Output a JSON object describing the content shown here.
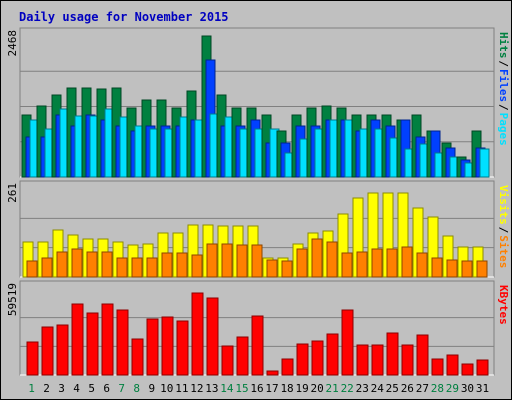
{
  "chart_data": {
    "type": "bar",
    "title": "Daily usage for November 2015",
    "days": [
      "1",
      "2",
      "3",
      "4",
      "5",
      "6",
      "7",
      "8",
      "9",
      "10",
      "11",
      "12",
      "13",
      "14",
      "15",
      "16",
      "17",
      "18",
      "19",
      "20",
      "21",
      "22",
      "23",
      "24",
      "25",
      "26",
      "27",
      "28",
      "29",
      "30",
      "31"
    ],
    "weekend_days": [
      "1",
      "7",
      "8",
      "14",
      "15",
      "21",
      "22",
      "28",
      "29"
    ],
    "panels": {
      "hits_files_pages": {
        "max_label": "2468",
        "ymax": 2468,
        "series": [
          {
            "name": "Hits",
            "color": "#008040",
            "values": [
              1093,
              1251,
              1444,
              1561,
              1561,
              1542,
              1561,
              1200,
              1347,
              1347,
              1200,
              1503,
              2468,
              1444,
              1205,
              1205,
              1093,
              813,
              1093,
              1205,
              1251,
              1205,
              1093,
              1093,
              1093,
              1000,
              1093,
              813,
              600,
              350,
              813
            ]
          },
          {
            "name": "Files",
            "color": "#0040ff",
            "values": [
              700,
              700,
              1093,
              900,
              1093,
              1000,
              900,
              813,
              900,
              900,
              900,
              1000,
              2050,
              900,
              900,
              1000,
              600,
              600,
              900,
              900,
              1000,
              1000,
              813,
              1000,
              900,
              1000,
              700,
              813,
              500,
              300,
              500
            ]
          },
          {
            "name": "Pages",
            "color": "#00e0ff",
            "values": [
              996,
              836,
              1188,
              1069,
              1069,
              1188,
              1045,
              892,
              836,
              836,
              1045,
              1000,
              1094,
              1045,
              836,
              836,
              836,
              420,
              658,
              836,
              994,
              994,
              836,
              836,
              686,
              490,
              574,
              420,
              346,
              248,
              490
            ]
          }
        ]
      },
      "visits_sites": {
        "max_label": "261",
        "ymax": 261,
        "series": [
          {
            "name": "Visits",
            "color": "#ffff00",
            "values": [
              103,
              103,
              140,
              126,
              112,
              112,
              103,
              94,
              98,
              131,
              131,
              155,
              155,
              150,
              150,
              150,
              56,
              56,
              98,
              131,
              136,
              187,
              234,
              248,
              248,
              248,
              206,
              178,
              122,
              89,
              89
            ]
          },
          {
            "name": "Sites",
            "color": "#ff8000",
            "values": [
              47,
              56,
              75,
              84,
              75,
              75,
              56,
              56,
              56,
              70,
              70,
              65,
              98,
              98,
              94,
              94,
              51,
              47,
              84,
              112,
              103,
              70,
              75,
              84,
              84,
              89,
              70,
              56,
              51,
              47,
              47
            ]
          }
        ]
      },
      "kbytes": {
        "max_label": "59519",
        "ymax": 59519,
        "series": [
          {
            "name": "KBytes",
            "color": "#ff0000",
            "values": [
              23000,
              33000,
              34500,
              49000,
              43000,
              49000,
              45000,
              25000,
              39000,
              40000,
              37500,
              57000,
              53000,
              20000,
              26000,
              41000,
              3000,
              11000,
              21500,
              23500,
              28500,
              45000,
              20500,
              20500,
              29000,
              20500,
              27500,
              11000,
              13500,
              7500,
              10500
            ]
          }
        ]
      }
    }
  }
}
